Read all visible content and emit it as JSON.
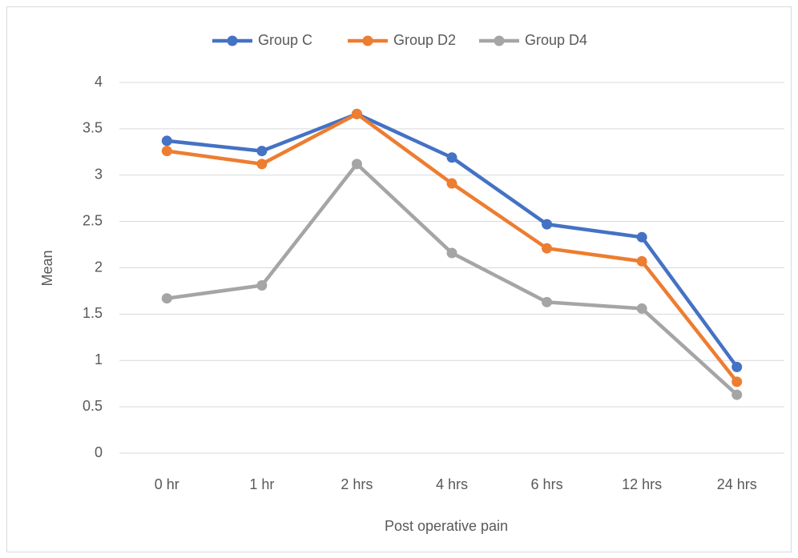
{
  "chart_data": {
    "type": "line",
    "x_label": "Post operative pain",
    "y_label": "Mean",
    "categories": [
      "0 hr",
      "1 hr",
      "2 hrs",
      "4 hrs",
      "6 hrs",
      "12 hrs",
      "24 hrs"
    ],
    "series": [
      {
        "name": "Group C",
        "color": "#4472c4",
        "values": [
          3.37,
          3.26,
          3.66,
          3.19,
          2.47,
          2.33,
          0.93
        ]
      },
      {
        "name": "Group D2",
        "color": "#ed7d31",
        "values": [
          3.26,
          3.12,
          3.66,
          2.91,
          2.21,
          2.07,
          0.77
        ]
      },
      {
        "name": "Group D4",
        "color": "#a5a5a5",
        "values": [
          1.67,
          1.81,
          3.12,
          2.16,
          1.63,
          1.56,
          0.63
        ]
      }
    ],
    "ylim": [
      0,
      4
    ],
    "yticks": [
      0,
      0.5,
      1,
      1.5,
      2,
      2.5,
      3,
      3.5,
      4
    ],
    "grid": true,
    "legend": "top"
  }
}
